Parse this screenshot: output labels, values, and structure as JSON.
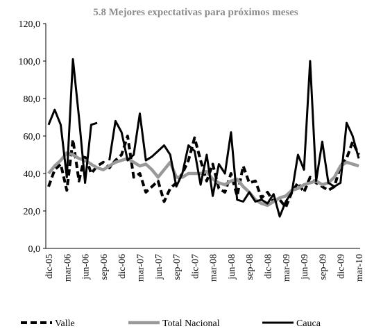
{
  "chart_data": {
    "type": "line",
    "title": "5.8 Mejores expectativas para próximos meses",
    "categories": [
      "dic-05",
      null,
      null,
      "mar-06",
      null,
      null,
      "jun-06",
      null,
      null,
      "sep-06",
      null,
      null,
      "dic-06",
      null,
      null,
      "mar-07",
      null,
      null,
      "jun-07",
      null,
      null,
      "sep-07",
      null,
      null,
      "dic-07",
      null,
      null,
      "mar-08",
      null,
      null,
      "jun-08",
      null,
      null,
      "sep-08",
      null,
      null,
      "dic-08",
      null,
      null,
      "mar-09",
      null,
      null,
      "jun-09",
      null,
      null,
      "sep-09",
      null,
      null,
      "dic-09",
      null,
      null,
      "mar-10"
    ],
    "ylim": [
      0,
      120
    ],
    "yticks": [
      {
        "value": 0,
        "label": "0,0"
      },
      {
        "value": 20,
        "label": "20,0"
      },
      {
        "value": 40,
        "label": "40,0"
      },
      {
        "value": 60,
        "label": "60,0"
      },
      {
        "value": 80,
        "label": "80,0"
      },
      {
        "value": 100,
        "label": "100,0"
      },
      {
        "value": 120,
        "label": "120,0"
      }
    ],
    "legend": "bottom",
    "series": [
      {
        "name": "Valle",
        "color": "#000000",
        "line_style": "dashed",
        "values": [
          33,
          42,
          45,
          31,
          58,
          36,
          50,
          40,
          44,
          46,
          43,
          47,
          50,
          60,
          38,
          40,
          30,
          33,
          36,
          25,
          32,
          35,
          40,
          47,
          59,
          47,
          36,
          45,
          32,
          30,
          40,
          28,
          44,
          35,
          36,
          27,
          30,
          25,
          26,
          22,
          30,
          35,
          30,
          38,
          35,
          33,
          31,
          33,
          44,
          48,
          57,
          50
        ]
      },
      {
        "name": "Total Nacional",
        "color": "#999999",
        "line_style": "solid",
        "values": [
          40,
          44,
          47,
          51,
          50,
          48,
          47,
          45,
          43,
          42,
          44,
          46,
          47,
          48,
          46,
          44,
          45,
          42,
          38,
          42,
          46,
          38,
          38,
          40,
          40,
          40,
          41,
          37,
          35,
          34,
          36,
          37,
          33,
          30,
          26,
          24,
          23,
          25,
          27,
          28,
          31,
          32,
          34,
          35,
          36,
          34,
          35,
          38,
          44,
          46,
          45,
          44
        ]
      },
      {
        "name": "Cauca",
        "color": "#000000",
        "line_style": "solid",
        "values": [
          66,
          74,
          66,
          38,
          101,
          70,
          35,
          66,
          67,
          null,
          47,
          68,
          62,
          47,
          50,
          72,
          47,
          49,
          52,
          55,
          50,
          33,
          40,
          55,
          52,
          34,
          50,
          28,
          45,
          40,
          62,
          26,
          25,
          30,
          25,
          26,
          24,
          29,
          17,
          25,
          30,
          50,
          42,
          100,
          36,
          57,
          35,
          33,
          35,
          67,
          60,
          48
        ]
      }
    ]
  }
}
